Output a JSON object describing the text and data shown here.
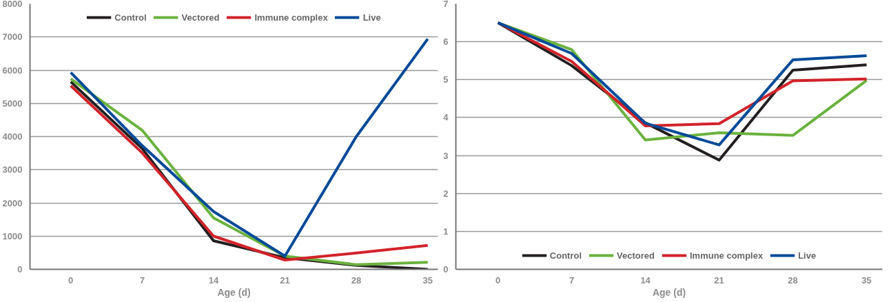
{
  "chart_data": [
    {
      "type": "line",
      "xlabel": "Age (d)",
      "x": [
        0,
        7,
        14,
        21,
        28,
        35
      ],
      "xlim": [
        -4,
        36
      ],
      "xticks": [
        0,
        7,
        14,
        21,
        28,
        35
      ],
      "ylim": [
        0,
        8000
      ],
      "yticks": [
        0,
        1000,
        2000,
        3000,
        4000,
        5000,
        6000,
        7000,
        8000
      ],
      "grid": "y",
      "legend": "top",
      "series": [
        {
          "name": "Control",
          "color": "#231f20",
          "values": [
            5650,
            3640,
            860,
            350,
            120,
            0
          ]
        },
        {
          "name": "Vectored",
          "color": "#6ab23e",
          "values": [
            5740,
            4190,
            1550,
            400,
            140,
            210
          ]
        },
        {
          "name": "Immune complex",
          "color": "#d2232a",
          "values": [
            5530,
            3510,
            1000,
            280,
            490,
            720
          ]
        },
        {
          "name": "Live",
          "color": "#004a98",
          "values": [
            5930,
            3730,
            1740,
            400,
            4000,
            6940
          ]
        }
      ]
    },
    {
      "type": "line",
      "xlabel": "Age (d)",
      "x": [
        0,
        7,
        14,
        21,
        28,
        35
      ],
      "xlim": [
        -4,
        36.5
      ],
      "xticks": [
        0,
        7,
        14,
        21,
        28,
        35
      ],
      "ylim": [
        0,
        7
      ],
      "yticks": [
        0,
        1,
        2,
        3,
        4,
        5,
        6,
        7
      ],
      "grid": "y",
      "legend": "bottom",
      "series": [
        {
          "name": "Control",
          "color": "#231f20",
          "values": [
            6.5,
            5.37,
            3.86,
            2.88,
            5.25,
            5.39
          ]
        },
        {
          "name": "Vectored",
          "color": "#6ab23e",
          "values": [
            6.5,
            5.79,
            3.41,
            3.6,
            3.53,
            4.98
          ]
        },
        {
          "name": "Immune complex",
          "color": "#d2232a",
          "values": [
            6.5,
            5.48,
            3.78,
            3.84,
            4.97,
            5.02
          ]
        },
        {
          "name": "Live",
          "color": "#004a98",
          "values": [
            6.5,
            5.69,
            3.85,
            3.28,
            5.52,
            5.63
          ]
        }
      ]
    }
  ]
}
